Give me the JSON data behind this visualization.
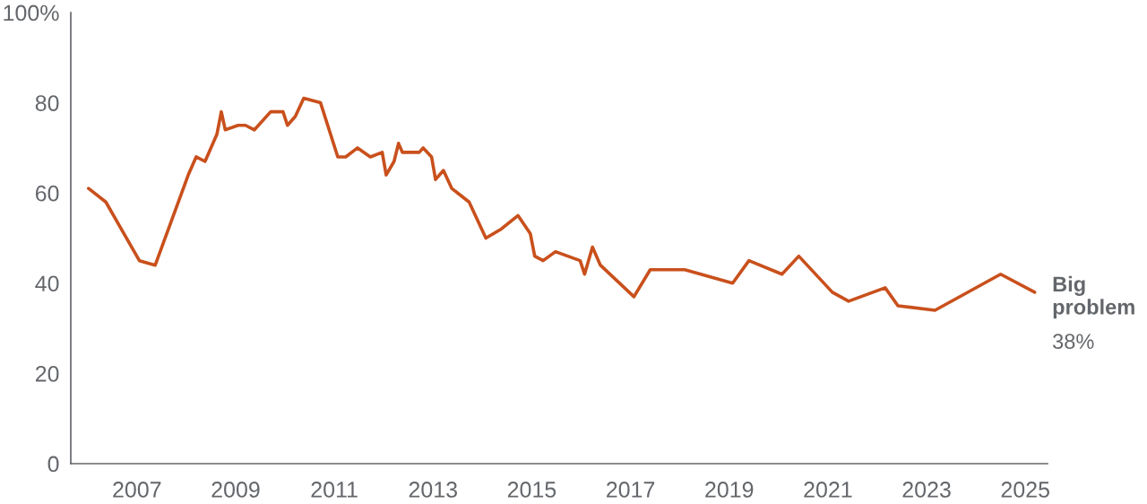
{
  "chart_data": {
    "type": "line",
    "x": [
      2006.02,
      2006.37,
      2007.05,
      2007.37,
      2008.04,
      2008.2,
      2008.38,
      2008.62,
      2008.71,
      2008.79,
      2009.05,
      2009.2,
      2009.38,
      2009.71,
      2009.96,
      2010.05,
      2010.21,
      2010.38,
      2010.72,
      2011.07,
      2011.23,
      2011.47,
      2011.73,
      2011.97,
      2012.05,
      2012.21,
      2012.3,
      2012.38,
      2012.72,
      2012.8,
      2012.97,
      2013.05,
      2013.21,
      2013.38,
      2013.73,
      2014.07,
      2014.38,
      2014.72,
      2014.97,
      2015.06,
      2015.23,
      2015.48,
      2015.98,
      2016.07,
      2016.23,
      2016.39,
      2017.07,
      2017.4,
      2018.1,
      2019.07,
      2019.4,
      2020.07,
      2020.41,
      2021.09,
      2021.42,
      2022.16,
      2022.42,
      2023.17,
      2024.5,
      2025.19
    ],
    "series": [
      {
        "name": "Big problem",
        "color": "#c9501c",
        "values": [
          61,
          58,
          45,
          44,
          64,
          68,
          67,
          73,
          78,
          74,
          75,
          75,
          74,
          78,
          78,
          75,
          77,
          81,
          80,
          68,
          68,
          70,
          68,
          69,
          64,
          67,
          71,
          69,
          69,
          70,
          68,
          63,
          65,
          61,
          58,
          50,
          52,
          55,
          51,
          46,
          45,
          47,
          45,
          42,
          48,
          44,
          37,
          43,
          43,
          40,
          45,
          42,
          46,
          38,
          36,
          39,
          35,
          34,
          42,
          38
        ],
        "value_labels": [
          null,
          null,
          null,
          null,
          null,
          null,
          null,
          null,
          null,
          null,
          null,
          null,
          null,
          null,
          null,
          null,
          null,
          null,
          null,
          null,
          null,
          null,
          null,
          null,
          null,
          null,
          null,
          null,
          null,
          null,
          null,
          null,
          null,
          null,
          null,
          null,
          null,
          null,
          null,
          null,
          null,
          null,
          null,
          null,
          null,
          null,
          null,
          null,
          null,
          null,
          null,
          null,
          null,
          null,
          null,
          null,
          null,
          null,
          null,
          "38%"
        ]
      }
    ],
    "xlim": [
      2005.66,
      2025.45
    ],
    "ylim": [
      0,
      100
    ],
    "xticks": [
      2007,
      2009,
      2011,
      2013,
      2015,
      2017,
      2019,
      2021,
      2023,
      2025
    ],
    "yticks": [
      0,
      20,
      40,
      60,
      80,
      {
        "value": 100,
        "label": "100%"
      }
    ]
  }
}
